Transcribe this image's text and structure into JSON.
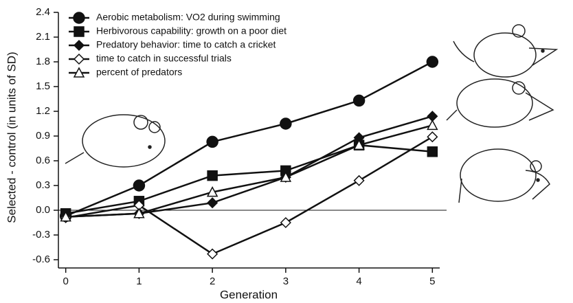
{
  "chart_data": {
    "type": "line",
    "x_label": "Generation",
    "y_label": "Selected - control (in units of SD)",
    "x": [
      0,
      1,
      2,
      3,
      4,
      5
    ],
    "xlim": [
      -0.1,
      5.1
    ],
    "xticks": [
      0,
      1,
      2,
      3,
      4,
      5
    ],
    "ylim": [
      -0.7,
      2.4
    ],
    "yticks": [
      -0.6,
      -0.3,
      {
        "value": 0,
        "label": "0.0"
      },
      0.3,
      0.6,
      0.9,
      1.2,
      1.5,
      1.8,
      2.1,
      2.4
    ],
    "legend": "upper left",
    "series": [
      {
        "name": "Aerobic metabolism: VO2 during swimming",
        "color": "#111111",
        "marker": "circle",
        "filled": true,
        "values": [
          -0.07,
          0.3,
          0.83,
          1.05,
          1.33,
          1.8
        ]
      },
      {
        "name": "Herbivorous capability: growth on a poor diet",
        "color": "#111111",
        "marker": "square",
        "filled": true,
        "values": [
          -0.04,
          0.11,
          0.42,
          0.48,
          0.79,
          0.71
        ]
      },
      {
        "name": "Predatory behavior: time to catch a cricket",
        "color": "#111111",
        "marker": "diamond",
        "filled": true,
        "values": [
          -0.08,
          -0.04,
          0.09,
          0.4,
          0.88,
          1.14
        ]
      },
      {
        "name": "time to catch in successful trials",
        "color": "#111111",
        "marker": "diamond",
        "filled": false,
        "values": [
          -0.09,
          0.06,
          -0.53,
          -0.15,
          0.36,
          0.89
        ]
      },
      {
        "name": "percent of predators",
        "color": "#111111",
        "marker": "triangle",
        "filled": false,
        "values": [
          -0.08,
          -0.04,
          0.22,
          0.4,
          0.79,
          1.03
        ]
      }
    ]
  }
}
